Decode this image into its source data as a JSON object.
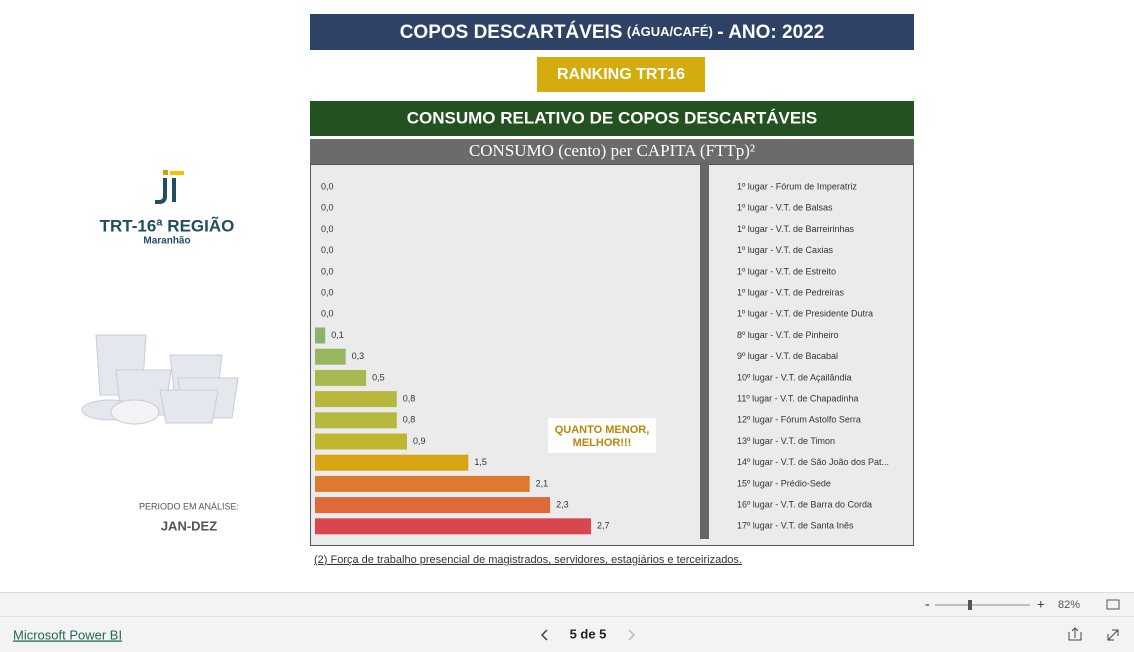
{
  "header": {
    "title_main": "COPOS DESCARTÁVEIS",
    "title_small": "(ÁGUA/CAFÉ)",
    "title_year": "- ANO: 2022",
    "badge": "RANKING TRT16"
  },
  "logo": {
    "name": "TRT-16ª REGIÃO",
    "state": "Maranhão"
  },
  "period": {
    "label": "PERIODO EM ANÁLISE:",
    "value": "JAN-DEZ"
  },
  "chart_data": {
    "type": "bar",
    "orientation": "horizontal",
    "title": "CONSUMO RELATIVO DE COPOS DESCARTÁVEIS",
    "subtitle": "CONSUMO (cento) per CAPITA (FTTp)²",
    "categories": [
      "1º lugar - Fórum de Imperatriz",
      "1º lugar - V.T. de Balsas",
      "1º lugar - V.T. de Barreirinhas",
      "1º lugar - V.T. de Caxias",
      "1º lugar - V.T. de Estreito",
      "1º lugar - V.T. de Pedreiras",
      "1º lugar - V.T. de Presidente Dutra",
      "8º lugar - V.T. de Pinheiro",
      "9º lugar - V.T. de Bacabal",
      "10º lugar - V.T. de Açailândia",
      "11º lugar - V.T. de Chapadinha",
      "12º lugar - Fórum Astolfo Serra",
      "13º lugar - V.T. de Timon",
      "14º lugar - V.T. de São João dos Pat...",
      "15º lugar - Prédio-Sede",
      "16º lugar - V.T. de Barra do Corda",
      "17º lugar - V.T. de Santa Inês"
    ],
    "values": [
      0,
      0,
      0,
      0,
      0,
      0,
      0,
      0.1,
      0.3,
      0.5,
      0.8,
      0.8,
      0.9,
      1.5,
      2.1,
      2.3,
      2.7
    ],
    "value_labels": [
      "0,0",
      "0,0",
      "0,0",
      "0,0",
      "0,0",
      "0,0",
      "0,0",
      "0,1",
      "0,3",
      "0,5",
      "0,8",
      "0,8",
      "0,9",
      "1,5",
      "2,1",
      "2,3",
      "2,7"
    ],
    "colors": [
      "#8db36a",
      "#8db36a",
      "#8db36a",
      "#8db36a",
      "#8db36a",
      "#8db36a",
      "#8db36a",
      "#8db36a",
      "#98b65f",
      "#a6b84f",
      "#b5b83c",
      "#b5b83c",
      "#c0b530",
      "#d9a414",
      "#dc7a30",
      "#de6a3a",
      "#d9474e"
    ],
    "annotation": [
      "QUANTO MENOR,",
      "MELHOR!!!"
    ],
    "footnote": "(2) Força de trabalho presencial de magistrados, servidores, estagiários e terceirizados."
  },
  "toolbar": {
    "zoom": "82%",
    "brand": "Microsoft Power BI",
    "page": "5 de 5"
  }
}
